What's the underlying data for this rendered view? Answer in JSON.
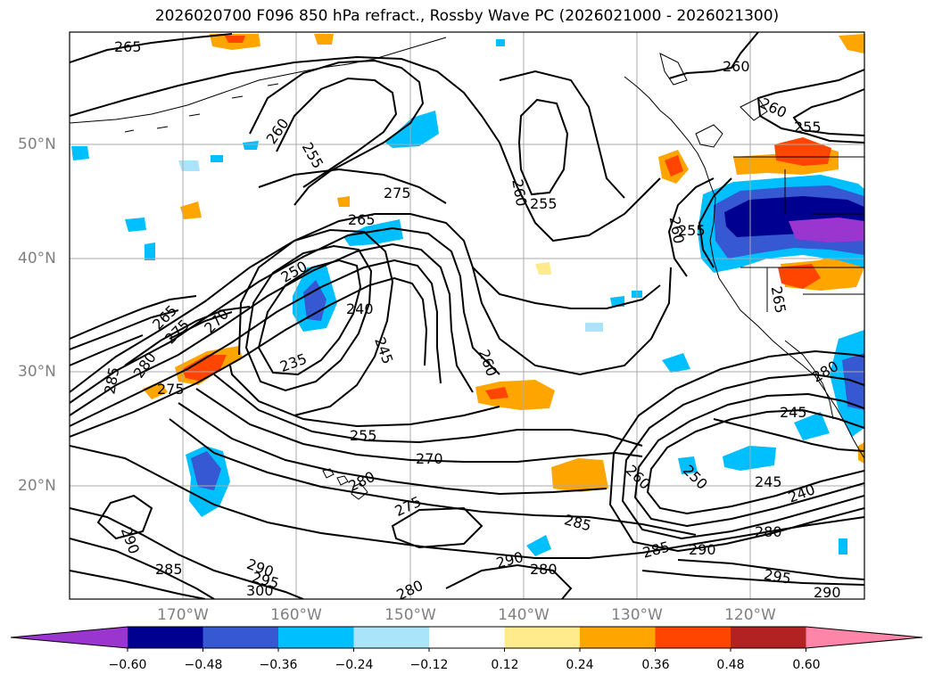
{
  "title": "2026020700 F096 850 hPa refract., Rossby Wave PC (2026021000 - 2026021300)",
  "lat_labels": [
    "50°N",
    "40°N",
    "30°N",
    "20°N"
  ],
  "lon_labels": [
    "170°W",
    "160°W",
    "150°W",
    "140°W",
    "130°W",
    "120°W"
  ],
  "colorbar": {
    "ticks": [
      "−0.60",
      "−0.48",
      "−0.36",
      "−0.24",
      "−0.12",
      "0.12",
      "0.24",
      "0.36",
      "0.48",
      "0.60"
    ],
    "colors": [
      "#9a35d0",
      "#000090",
      "#3658d2",
      "#00bfff",
      "#aae4fa",
      "#ffffff",
      "#ffea8c",
      "#ffa500",
      "#ff4500",
      "#b22222",
      "#ff85a8"
    ]
  },
  "contour_labels": [
    "265",
    "260",
    "255",
    "275",
    "265",
    "260",
    "255",
    "260",
    "255",
    "260",
    "255",
    "265",
    "260",
    "250",
    "240",
    "245",
    "235",
    "260",
    "265",
    "275",
    "270",
    "280",
    "285",
    "275",
    "255",
    "270",
    "280",
    "275",
    "260",
    "250",
    "245",
    "240",
    "245",
    "285",
    "290",
    "280",
    "280",
    "285",
    "290",
    "295",
    "290",
    "290",
    "285",
    "295",
    "300",
    "280",
    "280",
    "290"
  ],
  "colors": {
    "coast": "#000000",
    "contour": "#000000",
    "grid": "#aaaaaa"
  }
}
